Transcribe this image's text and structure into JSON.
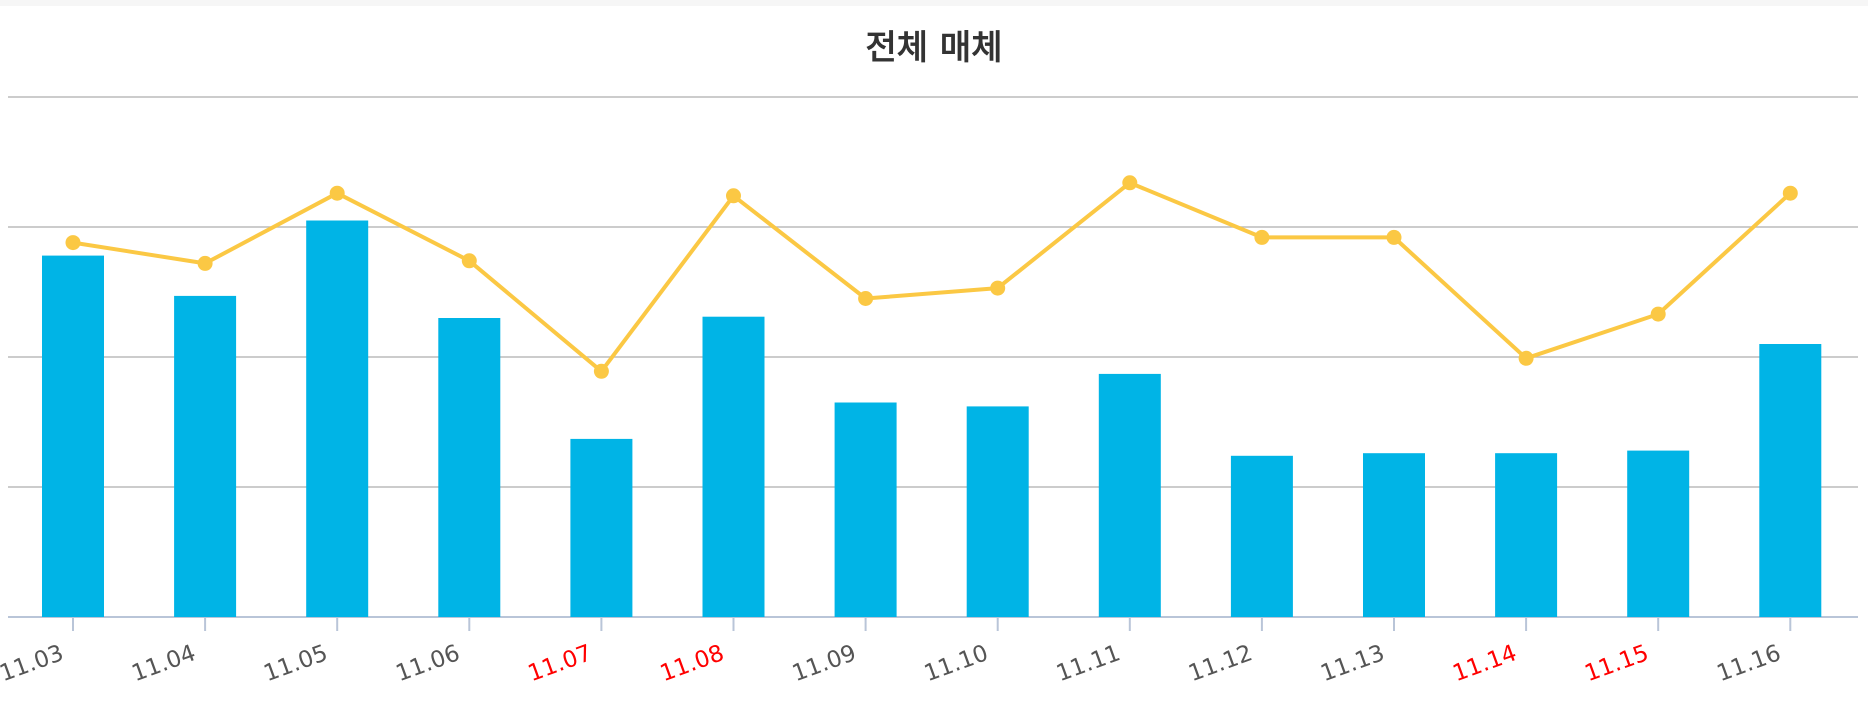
{
  "chart_data": {
    "type": "bar",
    "title": "전체 매체",
    "xlabel": "",
    "ylabel": "",
    "grid": true,
    "categories": [
      "11.03",
      "11.04",
      "11.05",
      "11.06",
      "11.07",
      "11.08",
      "11.09",
      "11.10",
      "11.11",
      "11.12",
      "11.13",
      "11.14",
      "11.15",
      "11.16"
    ],
    "weekend_categories": [
      "11.07",
      "11.08",
      "11.14",
      "11.15"
    ],
    "series": [
      {
        "type": "bar",
        "color": "#00b4e6",
        "values": [
          2.78,
          2.47,
          3.05,
          2.3,
          1.37,
          2.31,
          1.65,
          1.62,
          1.87,
          1.24,
          1.26,
          1.26,
          1.28,
          2.1
        ],
        "ylim": [
          0,
          4
        ]
      },
      {
        "type": "line",
        "color": "#fbc844",
        "values": [
          2.88,
          2.72,
          3.26,
          2.74,
          1.89,
          3.24,
          2.45,
          2.53,
          3.34,
          2.92,
          2.92,
          1.99,
          2.33,
          3.26
        ],
        "ylim": [
          0,
          4
        ]
      }
    ],
    "colors": {
      "tick_normal": "#555555",
      "tick_weekend": "#ff0000",
      "grid": "#bbbbbb",
      "axis": "#b9c5d8"
    }
  }
}
